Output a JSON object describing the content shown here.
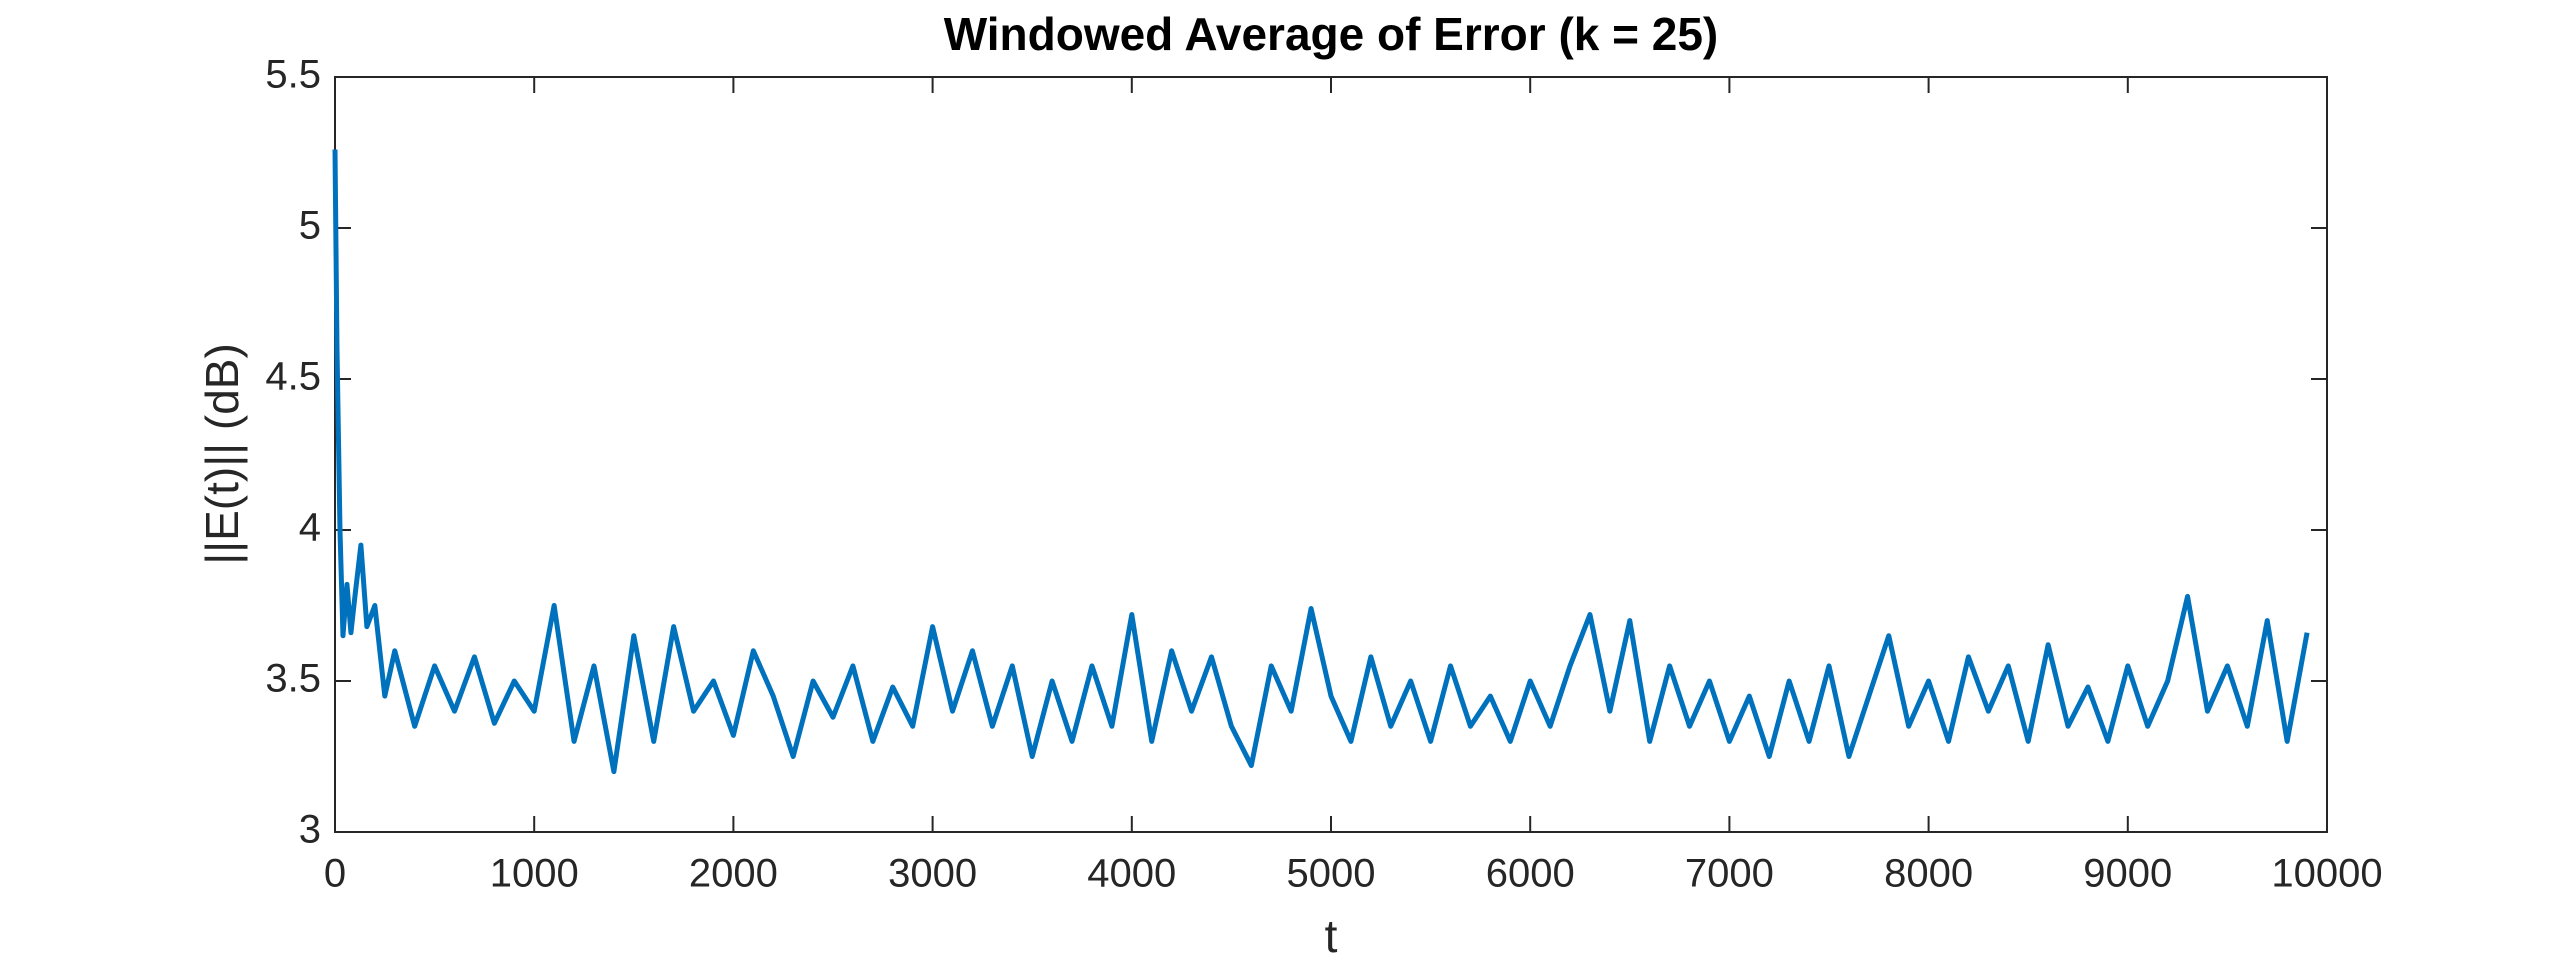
{
  "chart_data": {
    "type": "line",
    "title": "Windowed Average of Error (k = 25)",
    "xlabel": "t",
    "ylabel": "||E(t)|| (dB)",
    "color": "#0072bd",
    "x": [
      0,
      10,
      25,
      40,
      60,
      80,
      100,
      130,
      160,
      200,
      250,
      300,
      400,
      500,
      600,
      700,
      800,
      900,
      1000,
      1100,
      1200,
      1300,
      1400,
      1500,
      1600,
      1700,
      1800,
      1900,
      2000,
      2100,
      2200,
      2300,
      2400,
      2500,
      2600,
      2700,
      2800,
      2900,
      3000,
      3100,
      3200,
      3300,
      3400,
      3500,
      3600,
      3700,
      3800,
      3900,
      4000,
      4100,
      4200,
      4300,
      4400,
      4500,
      4600,
      4700,
      4800,
      4900,
      5000,
      5100,
      5200,
      5300,
      5400,
      5500,
      5600,
      5700,
      5800,
      5900,
      6000,
      6100,
      6200,
      6300,
      6400,
      6500,
      6600,
      6700,
      6800,
      6900,
      7000,
      7100,
      7200,
      7300,
      7400,
      7500,
      7600,
      7700,
      7800,
      7900,
      8000,
      8100,
      8200,
      8300,
      8400,
      8500,
      8600,
      8700,
      8800,
      8900,
      9000,
      9100,
      9200,
      9300,
      9400,
      9500,
      9600,
      9700,
      9800,
      9900
    ],
    "values": [
      5.26,
      4.6,
      4.0,
      3.65,
      3.82,
      3.66,
      3.78,
      3.95,
      3.68,
      3.75,
      3.45,
      3.6,
      3.35,
      3.55,
      3.4,
      3.58,
      3.36,
      3.5,
      3.4,
      3.75,
      3.3,
      3.55,
      3.2,
      3.65,
      3.3,
      3.68,
      3.4,
      3.5,
      3.32,
      3.6,
      3.45,
      3.25,
      3.5,
      3.38,
      3.55,
      3.3,
      3.48,
      3.35,
      3.68,
      3.4,
      3.6,
      3.35,
      3.55,
      3.25,
      3.5,
      3.3,
      3.55,
      3.35,
      3.72,
      3.3,
      3.6,
      3.4,
      3.58,
      3.35,
      3.22,
      3.55,
      3.4,
      3.74,
      3.45,
      3.3,
      3.58,
      3.35,
      3.5,
      3.3,
      3.55,
      3.35,
      3.45,
      3.3,
      3.5,
      3.35,
      3.55,
      3.72,
      3.4,
      3.7,
      3.3,
      3.55,
      3.35,
      3.5,
      3.3,
      3.45,
      3.25,
      3.5,
      3.3,
      3.55,
      3.25,
      3.45,
      3.65,
      3.35,
      3.5,
      3.3,
      3.58,
      3.4,
      3.55,
      3.3,
      3.62,
      3.35,
      3.48,
      3.3,
      3.55,
      3.35,
      3.5,
      3.78,
      3.4,
      3.55,
      3.35,
      3.7,
      3.3,
      3.66
    ],
    "xlim": [
      0,
      10000
    ],
    "xticks": [
      0,
      1000,
      2000,
      3000,
      4000,
      5000,
      6000,
      7000,
      8000,
      9000,
      10000
    ],
    "ylim": [
      3,
      5.5
    ],
    "yticks": [
      3,
      3.5,
      4,
      4.5,
      5,
      5.5
    ]
  }
}
